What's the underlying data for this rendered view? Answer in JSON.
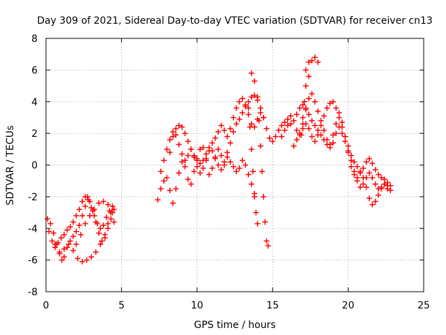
{
  "chart_data": {
    "type": "scatter",
    "title": "Day 309 of 2021, Sidereal Day-to-day VTEC variation (SDTVAR) for receiver cn13",
    "xlabel": "GPS time / hours",
    "ylabel": "SDTVAR / TECUs",
    "xlim": [
      0,
      25
    ],
    "ylim": [
      -8,
      8
    ],
    "xticks": [
      0,
      5,
      10,
      15,
      20,
      25
    ],
    "yticks": [
      -8,
      -6,
      -4,
      -2,
      0,
      2,
      4,
      6,
      8
    ],
    "grid": true,
    "marker": "plus",
    "color": "#ff0000",
    "series": [
      {
        "values": [
          [
            0.1,
            -3.4
          ],
          [
            0.3,
            -3.7
          ],
          [
            0.5,
            -4.3
          ],
          [
            0.7,
            -5.0
          ],
          [
            0.9,
            -5.6
          ],
          [
            1.05,
            -6.0
          ],
          [
            1.2,
            -5.8
          ],
          [
            1.4,
            -5.2
          ],
          [
            1.6,
            -4.8
          ],
          [
            1.8,
            -4.5
          ],
          [
            2.0,
            -4.2
          ],
          [
            2.2,
            -3.8
          ],
          [
            2.4,
            -3.2
          ],
          [
            2.6,
            -2.6
          ],
          [
            2.75,
            -2.0
          ],
          [
            2.9,
            -2.3
          ],
          [
            3.1,
            -2.9
          ],
          [
            3.3,
            -3.6
          ],
          [
            3.5,
            -4.3
          ],
          [
            3.7,
            -4.8
          ],
          [
            3.9,
            -4.6
          ],
          [
            4.1,
            -4.0
          ],
          [
            4.3,
            -3.4
          ],
          [
            4.5,
            -2.8
          ],
          [
            0.2,
            -4.2
          ],
          [
            0.4,
            -4.8
          ],
          [
            0.6,
            -5.0
          ],
          [
            0.8,
            -4.9
          ],
          [
            1.0,
            -4.6
          ],
          [
            1.2,
            -4.4
          ],
          [
            1.4,
            -4.1
          ],
          [
            1.6,
            -3.9
          ],
          [
            1.8,
            -3.6
          ],
          [
            2.0,
            -3.2
          ],
          [
            2.2,
            -2.8
          ],
          [
            2.4,
            -2.3
          ],
          [
            2.6,
            -2.0
          ],
          [
            2.8,
            -2.2
          ],
          [
            3.0,
            -2.7
          ],
          [
            3.2,
            -3.2
          ],
          [
            3.4,
            -3.7
          ],
          [
            3.6,
            -4.0
          ],
          [
            3.8,
            -3.8
          ],
          [
            4.0,
            -3.3
          ],
          [
            4.2,
            -2.9
          ],
          [
            4.4,
            -2.6
          ],
          [
            0.6,
            -5.2
          ],
          [
            0.9,
            -5.5
          ],
          [
            1.2,
            -5.3
          ],
          [
            1.5,
            -5.0
          ],
          [
            1.8,
            -5.4
          ],
          [
            2.1,
            -5.9
          ],
          [
            2.4,
            -6.1
          ],
          [
            2.7,
            -6.0
          ],
          [
            3.0,
            -5.8
          ],
          [
            3.3,
            -5.5
          ],
          [
            3.6,
            -5.0
          ],
          [
            3.9,
            -4.4
          ],
          [
            4.1,
            -3.7
          ],
          [
            4.3,
            -3.0
          ],
          [
            2.0,
            -5.0
          ],
          [
            2.3,
            -4.4
          ],
          [
            2.6,
            -3.7
          ],
          [
            2.9,
            -3.2
          ],
          [
            3.2,
            -2.8
          ],
          [
            3.5,
            -2.4
          ],
          [
            3.8,
            -2.3
          ],
          [
            4.1,
            -2.5
          ],
          [
            4.4,
            -3.0
          ],
          [
            4.5,
            -3.6
          ],
          [
            7.4,
            -2.2
          ],
          [
            7.6,
            -1.5
          ],
          [
            7.8,
            -1.0
          ],
          [
            8.0,
            -0.8
          ],
          [
            8.2,
            -1.6
          ],
          [
            8.4,
            -2.4
          ],
          [
            8.6,
            -1.5
          ],
          [
            8.8,
            -0.5
          ],
          [
            9.0,
            0.2
          ],
          [
            9.2,
            -0.1
          ],
          [
            9.4,
            -0.9
          ],
          [
            9.6,
            -1.2
          ],
          [
            9.8,
            -0.4
          ],
          [
            10.0,
            0.4
          ],
          [
            10.2,
            1.0
          ],
          [
            10.4,
            1.1
          ],
          [
            10.6,
            0.3
          ],
          [
            10.8,
            -0.6
          ],
          [
            11.0,
            -0.2
          ],
          [
            11.2,
            0.5
          ],
          [
            11.4,
            1.0
          ],
          [
            11.6,
            0.6
          ],
          [
            11.8,
            0.2
          ],
          [
            12.0,
            0.8
          ],
          [
            12.2,
            1.4
          ],
          [
            12.4,
            2.1
          ],
          [
            12.6,
            2.6
          ],
          [
            12.8,
            2.9
          ],
          [
            13.0,
            3.3
          ],
          [
            13.2,
            3.7
          ],
          [
            13.4,
            4.0
          ],
          [
            13.6,
            4.3
          ],
          [
            13.8,
            4.4
          ],
          [
            14.0,
            4.1
          ],
          [
            14.2,
            3.6
          ],
          [
            14.4,
            3.0
          ],
          [
            14.6,
            2.3
          ],
          [
            14.8,
            1.7
          ],
          [
            15.0,
            1.5
          ],
          [
            15.2,
            1.8
          ],
          [
            15.4,
            2.2
          ],
          [
            15.6,
            2.5
          ],
          [
            15.8,
            2.7
          ],
          [
            16.0,
            2.9
          ],
          [
            16.2,
            3.1
          ],
          [
            16.4,
            2.8
          ],
          [
            16.6,
            2.2
          ],
          [
            16.8,
            2.0
          ],
          [
            17.0,
            2.6
          ],
          [
            17.2,
            3.5
          ],
          [
            17.4,
            4.2
          ],
          [
            17.6,
            4.5
          ],
          [
            17.8,
            4.0
          ],
          [
            18.0,
            3.4
          ],
          [
            18.2,
            2.8
          ],
          [
            18.4,
            2.2
          ],
          [
            18.6,
            1.6
          ],
          [
            18.8,
            1.3
          ],
          [
            19.0,
            1.9
          ],
          [
            19.2,
            2.6
          ],
          [
            19.4,
            3.3
          ],
          [
            19.6,
            2.7
          ],
          [
            19.8,
            1.8
          ],
          [
            20.0,
            0.8
          ],
          [
            20.2,
            -0.1
          ],
          [
            20.4,
            -0.6
          ],
          [
            20.6,
            -0.8
          ],
          [
            20.8,
            -0.5
          ],
          [
            21.0,
            -0.2
          ],
          [
            21.2,
            0.2
          ],
          [
            21.4,
            0.4
          ],
          [
            21.6,
            0.1
          ],
          [
            21.8,
            -0.3
          ],
          [
            22.0,
            -0.6
          ],
          [
            22.2,
            -0.8
          ],
          [
            22.4,
            -0.9
          ],
          [
            22.6,
            -1.1
          ],
          [
            22.8,
            -1.3
          ],
          [
            7.6,
            -0.4
          ],
          [
            7.8,
            0.3
          ],
          [
            8.0,
            1.0
          ],
          [
            8.2,
            1.6
          ],
          [
            8.4,
            2.1
          ],
          [
            8.6,
            1.9
          ],
          [
            8.8,
            1.3
          ],
          [
            9.0,
            0.7
          ],
          [
            9.2,
            0.3
          ],
          [
            9.4,
            0.6
          ],
          [
            9.6,
            1.0
          ],
          [
            9.8,
            0.5
          ],
          [
            10.0,
            -0.1
          ],
          [
            10.2,
            -0.5
          ],
          [
            10.4,
            -0.2
          ],
          [
            10.6,
            0.4
          ],
          [
            10.8,
            0.9
          ],
          [
            11.0,
            1.4
          ],
          [
            11.2,
            1.7
          ],
          [
            11.4,
            2.1
          ],
          [
            11.6,
            2.5
          ],
          [
            11.8,
            2.2
          ],
          [
            12.0,
            1.8
          ],
          [
            12.2,
            2.3
          ],
          [
            12.4,
            3.0
          ],
          [
            12.6,
            3.6
          ],
          [
            12.8,
            4.0
          ],
          [
            13.0,
            4.2
          ],
          [
            13.2,
            3.8
          ],
          [
            13.4,
            3.2
          ],
          [
            13.6,
            2.6
          ],
          [
            13.8,
            2.4
          ],
          [
            14.0,
            2.9
          ],
          [
            14.2,
            3.3
          ],
          [
            14.4,
            3.0
          ],
          [
            15.6,
            1.8
          ],
          [
            15.8,
            2.2
          ],
          [
            16.0,
            2.5
          ],
          [
            16.2,
            2.6
          ],
          [
            16.6,
            3.2
          ],
          [
            16.8,
            3.6
          ],
          [
            17.0,
            3.8
          ],
          [
            17.2,
            3.6
          ],
          [
            17.4,
            3.2
          ],
          [
            17.6,
            2.8
          ],
          [
            17.8,
            2.5
          ],
          [
            18.0,
            2.2
          ],
          [
            18.2,
            1.9
          ],
          [
            18.4,
            1.6
          ],
          [
            18.6,
            1.3
          ],
          [
            18.8,
            1.1
          ],
          [
            19.0,
            1.4
          ],
          [
            19.2,
            2.0
          ],
          [
            19.4,
            2.4
          ],
          [
            19.6,
            2.0
          ],
          [
            19.8,
            1.5
          ],
          [
            20.0,
            0.9
          ],
          [
            20.2,
            0.3
          ],
          [
            20.4,
            -0.4
          ],
          [
            20.6,
            -1.0
          ],
          [
            20.8,
            -1.4
          ],
          [
            21.0,
            -1.2
          ],
          [
            21.2,
            -0.8
          ],
          [
            21.4,
            -0.5
          ],
          [
            21.6,
            -0.8
          ],
          [
            21.8,
            -1.2
          ],
          [
            22.0,
            -1.5
          ],
          [
            22.2,
            -1.4
          ],
          [
            22.4,
            -1.2
          ],
          [
            22.6,
            -1.5
          ],
          [
            22.8,
            -1.6
          ],
          [
            8.2,
            0.8
          ],
          [
            8.4,
            1.8
          ],
          [
            8.6,
            2.3
          ],
          [
            8.8,
            2.5
          ],
          [
            9.0,
            2.4
          ],
          [
            9.2,
            2.0
          ],
          [
            9.4,
            1.5
          ],
          [
            9.6,
            1.0
          ],
          [
            9.8,
            0.6
          ],
          [
            10.0,
            0.3
          ],
          [
            10.2,
            0.1
          ],
          [
            10.4,
            0.3
          ],
          [
            10.6,
            0.7
          ],
          [
            10.8,
            1.1
          ],
          [
            11.0,
            0.9
          ],
          [
            11.2,
            0.4
          ],
          [
            11.4,
            0.0
          ],
          [
            11.6,
            -0.3
          ],
          [
            11.8,
            0.0
          ],
          [
            12.0,
            0.5
          ],
          [
            12.2,
            0.2
          ],
          [
            12.4,
            -0.1
          ],
          [
            12.6,
            -0.4
          ],
          [
            12.8,
            -0.2
          ],
          [
            13.0,
            0.3
          ],
          [
            16.4,
            1.2
          ],
          [
            16.6,
            1.6
          ],
          [
            16.8,
            1.9
          ],
          [
            17.0,
            2.3
          ],
          [
            17.2,
            2.6
          ],
          [
            17.4,
            2.3
          ],
          [
            17.6,
            1.8
          ],
          [
            17.8,
            1.5
          ],
          [
            18.0,
            1.9
          ],
          [
            18.2,
            2.5
          ],
          [
            18.4,
            3.1
          ],
          [
            18.6,
            3.6
          ],
          [
            18.8,
            3.9
          ],
          [
            19.0,
            4.0
          ],
          [
            19.2,
            3.6
          ],
          [
            19.4,
            3.0
          ],
          [
            19.6,
            2.4
          ],
          [
            19.8,
            1.8
          ],
          [
            20.0,
            1.2
          ],
          [
            20.2,
            0.6
          ],
          [
            20.4,
            0.2
          ],
          [
            20.6,
            -0.1
          ],
          [
            20.8,
            -0.4
          ],
          [
            21.0,
            -0.8
          ],
          [
            21.2,
            -1.4
          ],
          [
            21.4,
            -2.1
          ],
          [
            21.6,
            -2.5
          ],
          [
            21.8,
            -2.3
          ],
          [
            22.0,
            -1.9
          ],
          [
            22.2,
            -1.5
          ],
          [
            22.4,
            -1.2
          ],
          [
            22.6,
            -1.3
          ],
          [
            22.8,
            -1.6
          ],
          [
            13.6,
            5.8
          ],
          [
            13.8,
            5.3
          ],
          [
            14.0,
            4.3
          ],
          [
            14.1,
            2.8
          ],
          [
            14.2,
            1.2
          ],
          [
            14.3,
            -0.4
          ],
          [
            14.4,
            -2.0
          ],
          [
            14.5,
            -3.6
          ],
          [
            14.6,
            -4.8
          ],
          [
            14.7,
            -5.1
          ],
          [
            13.4,
            3.6
          ],
          [
            13.5,
            2.4
          ],
          [
            13.6,
            1.0
          ],
          [
            13.7,
            -0.4
          ],
          [
            13.8,
            -1.8
          ],
          [
            13.9,
            -3.0
          ],
          [
            14.0,
            -3.7
          ],
          [
            17.2,
            6.0
          ],
          [
            17.4,
            6.5
          ],
          [
            17.6,
            6.6
          ],
          [
            17.8,
            6.8
          ],
          [
            18.0,
            6.5
          ],
          [
            16.9,
            1.9
          ],
          [
            17.0,
            3.0
          ],
          [
            17.1,
            4.0
          ],
          [
            17.2,
            5.0
          ],
          [
            17.4,
            5.6
          ],
          [
            13.2,
            0.0
          ],
          [
            13.4,
            -0.6
          ],
          [
            13.6,
            -1.2
          ],
          [
            13.8,
            -2.0
          ]
        ]
      }
    ]
  }
}
